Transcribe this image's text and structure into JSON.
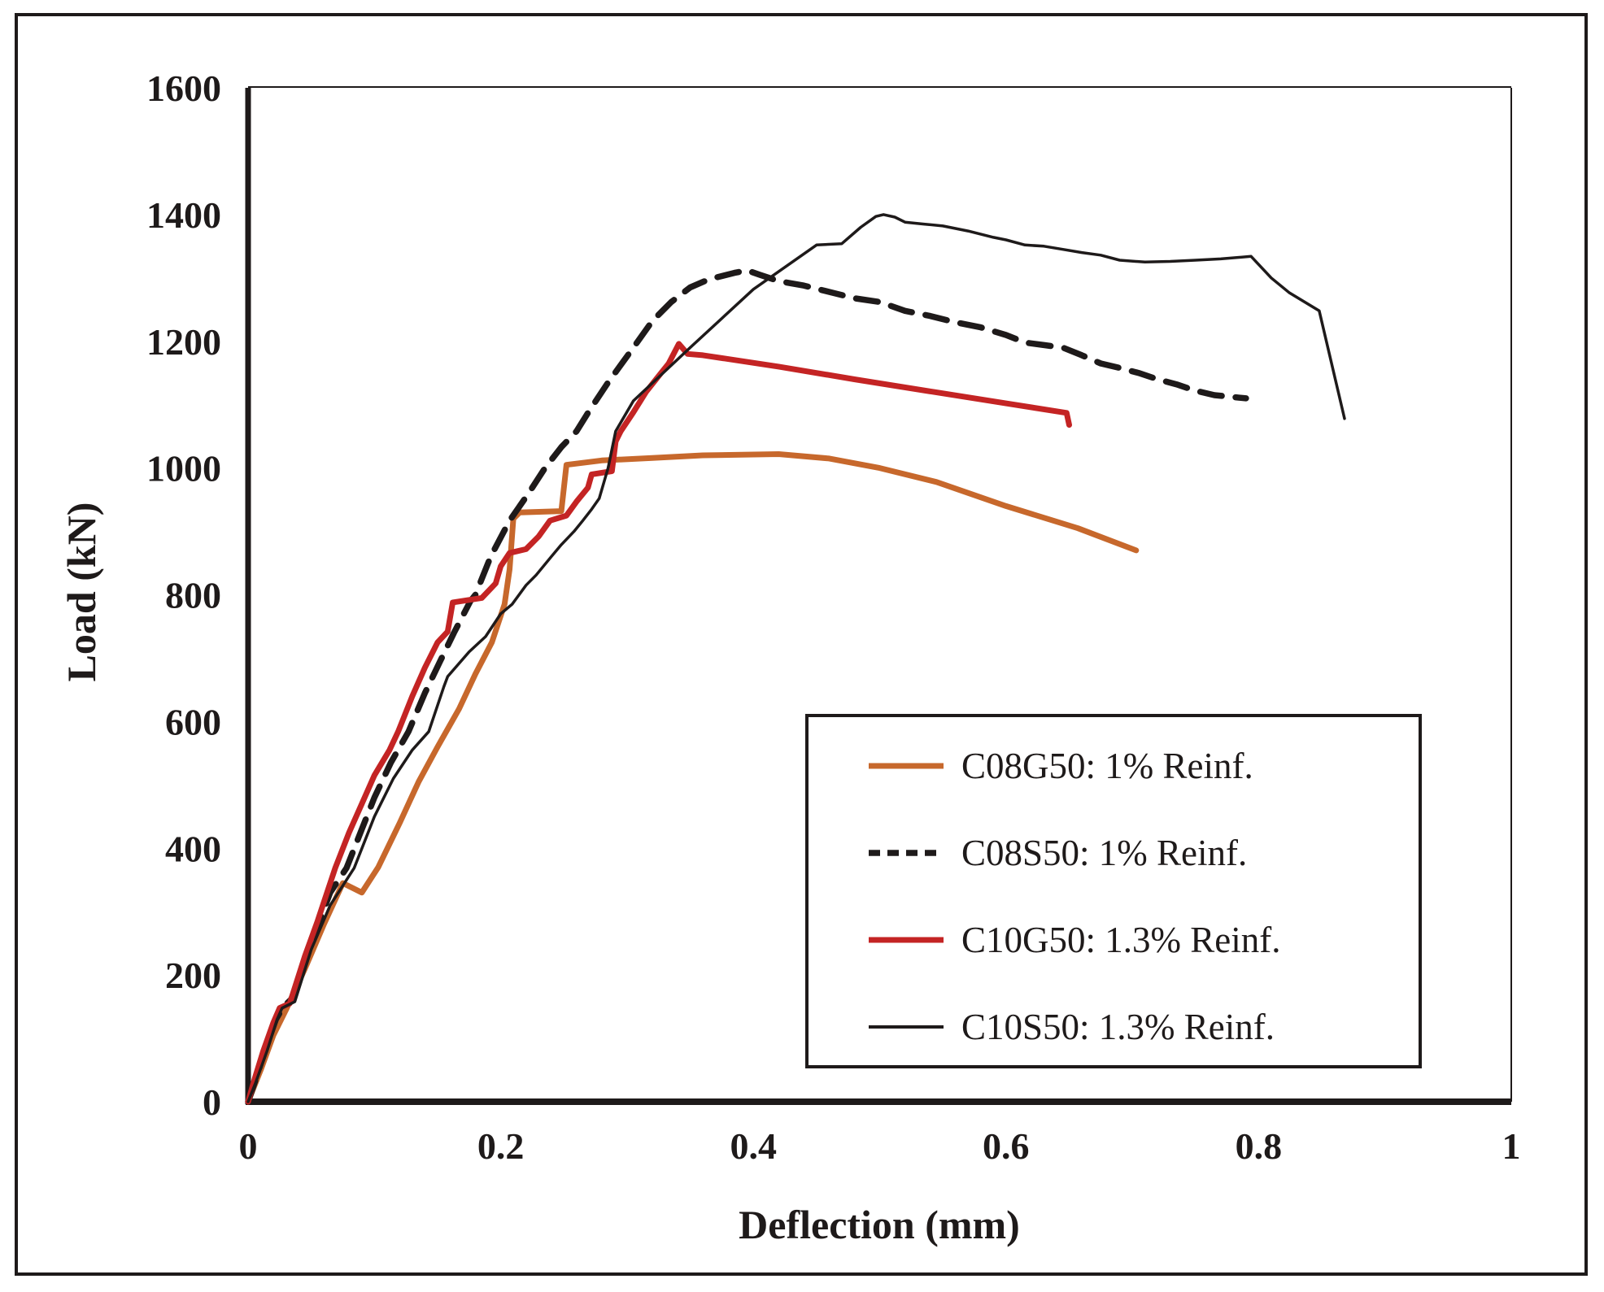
{
  "figure": {
    "background_color": "#ffffff",
    "border_color": "#1e1a1a",
    "axis_color": "#1e1a1a",
    "text_color": "#1e1a1a"
  },
  "chart_data": {
    "type": "line",
    "title": "",
    "xlabel": "Deflection (mm)",
    "ylabel": "Load (kN)",
    "xlim": [
      0,
      1
    ],
    "ylim": [
      0,
      1600
    ],
    "grid": false,
    "legend_position": "inside-lower-right-box",
    "x_ticks": [
      {
        "v": 0,
        "label": "0"
      },
      {
        "v": 0.2,
        "label": "0.2"
      },
      {
        "v": 0.4,
        "label": "0.4"
      },
      {
        "v": 0.6,
        "label": "0.6"
      },
      {
        "v": 0.8,
        "label": "0.8"
      },
      {
        "v": 1,
        "label": "1"
      }
    ],
    "y_ticks": [
      {
        "v": 0,
        "label": "0"
      },
      {
        "v": 200,
        "label": "200"
      },
      {
        "v": 400,
        "label": "400"
      },
      {
        "v": 600,
        "label": "600"
      },
      {
        "v": 800,
        "label": "800"
      },
      {
        "v": 1000,
        "label": "1000"
      },
      {
        "v": 1200,
        "label": "1200"
      },
      {
        "v": 1400,
        "label": "1400"
      },
      {
        "v": 1600,
        "label": "1600"
      }
    ],
    "series": [
      {
        "name": "C08G50: 1% Reinf.",
        "color": "#c7682c",
        "style": "solid",
        "width": 7,
        "dash": null,
        "legend_dash": null,
        "points": [
          [
            0,
            0
          ],
          [
            0.01,
            50
          ],
          [
            0.02,
            105
          ],
          [
            0.03,
            145
          ],
          [
            0.045,
            210
          ],
          [
            0.06,
            280
          ],
          [
            0.075,
            345
          ],
          [
            0.09,
            330
          ],
          [
            0.103,
            370
          ],
          [
            0.12,
            440
          ],
          [
            0.135,
            505
          ],
          [
            0.15,
            560
          ],
          [
            0.167,
            620
          ],
          [
            0.18,
            675
          ],
          [
            0.193,
            725
          ],
          [
            0.203,
            785
          ],
          [
            0.207,
            840
          ],
          [
            0.21,
            920
          ],
          [
            0.215,
            930
          ],
          [
            0.248,
            932
          ],
          [
            0.252,
            1005
          ],
          [
            0.28,
            1012
          ],
          [
            0.32,
            1016
          ],
          [
            0.36,
            1020
          ],
          [
            0.42,
            1022
          ],
          [
            0.46,
            1015
          ],
          [
            0.5,
            1000
          ],
          [
            0.545,
            978
          ],
          [
            0.6,
            940
          ],
          [
            0.657,
            905
          ],
          [
            0.703,
            870
          ]
        ]
      },
      {
        "name": "C08S50: 1% Reinf.",
        "color": "#1e1a1a",
        "style": "dashed",
        "width": 7.5,
        "dash": "27 17",
        "legend_dash": "14 9",
        "points": [
          [
            0,
            0
          ],
          [
            0.006,
            35
          ],
          [
            0.014,
            85
          ],
          [
            0.022,
            130
          ],
          [
            0.028,
            150
          ],
          [
            0.036,
            165
          ],
          [
            0.05,
            250
          ],
          [
            0.065,
            330
          ],
          [
            0.078,
            369
          ],
          [
            0.09,
            430
          ],
          [
            0.1,
            480
          ],
          [
            0.113,
            535
          ],
          [
            0.127,
            584
          ],
          [
            0.14,
            645
          ],
          [
            0.152,
            695
          ],
          [
            0.163,
            740
          ],
          [
            0.176,
            790
          ],
          [
            0.18,
            800
          ],
          [
            0.192,
            860
          ],
          [
            0.207,
            917
          ],
          [
            0.222,
            960
          ],
          [
            0.235,
            1000
          ],
          [
            0.248,
            1033
          ],
          [
            0.26,
            1058
          ],
          [
            0.27,
            1090
          ],
          [
            0.285,
            1135
          ],
          [
            0.305,
            1190
          ],
          [
            0.32,
            1232
          ],
          [
            0.335,
            1262
          ],
          [
            0.35,
            1285
          ],
          [
            0.365,
            1298
          ],
          [
            0.385,
            1308
          ],
          [
            0.395,
            1312
          ],
          [
            0.405,
            1305
          ],
          [
            0.42,
            1295
          ],
          [
            0.44,
            1288
          ],
          [
            0.46,
            1278
          ],
          [
            0.48,
            1268
          ],
          [
            0.5,
            1262
          ],
          [
            0.52,
            1248
          ],
          [
            0.54,
            1240
          ],
          [
            0.56,
            1230
          ],
          [
            0.58,
            1222
          ],
          [
            0.6,
            1210
          ],
          [
            0.615,
            1198
          ],
          [
            0.63,
            1194
          ],
          [
            0.645,
            1190
          ],
          [
            0.66,
            1178
          ],
          [
            0.675,
            1165
          ],
          [
            0.69,
            1158
          ],
          [
            0.705,
            1150
          ],
          [
            0.72,
            1140
          ],
          [
            0.735,
            1132
          ],
          [
            0.75,
            1122
          ],
          [
            0.765,
            1115
          ],
          [
            0.79,
            1110
          ]
        ]
      },
      {
        "name": "C10G50: 1.3% Reinf.",
        "color": "#c42424",
        "style": "solid",
        "width": 7,
        "dash": null,
        "legend_dash": null,
        "points": [
          [
            0,
            0
          ],
          [
            0.005,
            35
          ],
          [
            0.012,
            80
          ],
          [
            0.02,
            125
          ],
          [
            0.025,
            148
          ],
          [
            0.033,
            155
          ],
          [
            0.045,
            230
          ],
          [
            0.055,
            285
          ],
          [
            0.069,
            369
          ],
          [
            0.08,
            425
          ],
          [
            0.09,
            470
          ],
          [
            0.1,
            515
          ],
          [
            0.112,
            555
          ],
          [
            0.119,
            585
          ],
          [
            0.13,
            640
          ],
          [
            0.14,
            685
          ],
          [
            0.15,
            725
          ],
          [
            0.158,
            742
          ],
          [
            0.162,
            788
          ],
          [
            0.185,
            795
          ],
          [
            0.196,
            818
          ],
          [
            0.2,
            845
          ],
          [
            0.207,
            866
          ],
          [
            0.22,
            872
          ],
          [
            0.23,
            892
          ],
          [
            0.239,
            917
          ],
          [
            0.252,
            925
          ],
          [
            0.26,
            947
          ],
          [
            0.269,
            969
          ],
          [
            0.272,
            990
          ],
          [
            0.288,
            995
          ],
          [
            0.291,
            1042
          ],
          [
            0.295,
            1058
          ],
          [
            0.305,
            1088
          ],
          [
            0.315,
            1120
          ],
          [
            0.325,
            1145
          ],
          [
            0.333,
            1165
          ],
          [
            0.341,
            1196
          ],
          [
            0.348,
            1180
          ],
          [
            0.36,
            1178
          ],
          [
            0.42,
            1160
          ],
          [
            0.48,
            1140
          ],
          [
            0.543,
            1120
          ],
          [
            0.6,
            1102
          ],
          [
            0.648,
            1087
          ],
          [
            0.65,
            1068
          ]
        ]
      },
      {
        "name": "C10S50: 1.3% Reinf.",
        "color": "#1e1a1a",
        "style": "solid",
        "width": 3.5,
        "dash": null,
        "legend_dash": null,
        "points": [
          [
            0,
            0
          ],
          [
            0.006,
            30
          ],
          [
            0.015,
            80
          ],
          [
            0.023,
            130
          ],
          [
            0.027,
            148
          ],
          [
            0.037,
            158
          ],
          [
            0.05,
            240
          ],
          [
            0.065,
            310
          ],
          [
            0.084,
            369
          ],
          [
            0.1,
            450
          ],
          [
            0.115,
            510
          ],
          [
            0.13,
            555
          ],
          [
            0.143,
            584
          ],
          [
            0.155,
            655
          ],
          [
            0.158,
            671
          ],
          [
            0.175,
            710
          ],
          [
            0.188,
            734
          ],
          [
            0.2,
            770
          ],
          [
            0.209,
            785
          ],
          [
            0.22,
            815
          ],
          [
            0.228,
            831
          ],
          [
            0.24,
            860
          ],
          [
            0.248,
            879
          ],
          [
            0.258,
            900
          ],
          [
            0.265,
            917
          ],
          [
            0.272,
            935
          ],
          [
            0.278,
            952
          ],
          [
            0.285,
            1000
          ],
          [
            0.291,
            1058
          ],
          [
            0.305,
            1106
          ],
          [
            0.35,
            1190
          ],
          [
            0.4,
            1282
          ],
          [
            0.45,
            1352
          ],
          [
            0.47,
            1354
          ],
          [
            0.485,
            1380
          ],
          [
            0.497,
            1397
          ],
          [
            0.503,
            1400
          ],
          [
            0.512,
            1396
          ],
          [
            0.52,
            1388
          ],
          [
            0.535,
            1385
          ],
          [
            0.55,
            1382
          ],
          [
            0.57,
            1374
          ],
          [
            0.59,
            1364
          ],
          [
            0.6,
            1360
          ],
          [
            0.615,
            1352
          ],
          [
            0.63,
            1350
          ],
          [
            0.645,
            1345
          ],
          [
            0.66,
            1340
          ],
          [
            0.675,
            1336
          ],
          [
            0.69,
            1328
          ],
          [
            0.71,
            1325
          ],
          [
            0.73,
            1326
          ],
          [
            0.75,
            1328
          ],
          [
            0.77,
            1330
          ],
          [
            0.794,
            1334
          ],
          [
            0.81,
            1300
          ],
          [
            0.824,
            1277
          ],
          [
            0.848,
            1248
          ],
          [
            0.868,
            1078
          ]
        ]
      }
    ]
  },
  "legend": {
    "entries": [
      {
        "label": "C08G50: 1% Reinf."
      },
      {
        "label": "C08S50: 1% Reinf."
      },
      {
        "label": "C10G50: 1.3% Reinf."
      },
      {
        "label": "C10S50: 1.3% Reinf."
      }
    ]
  }
}
